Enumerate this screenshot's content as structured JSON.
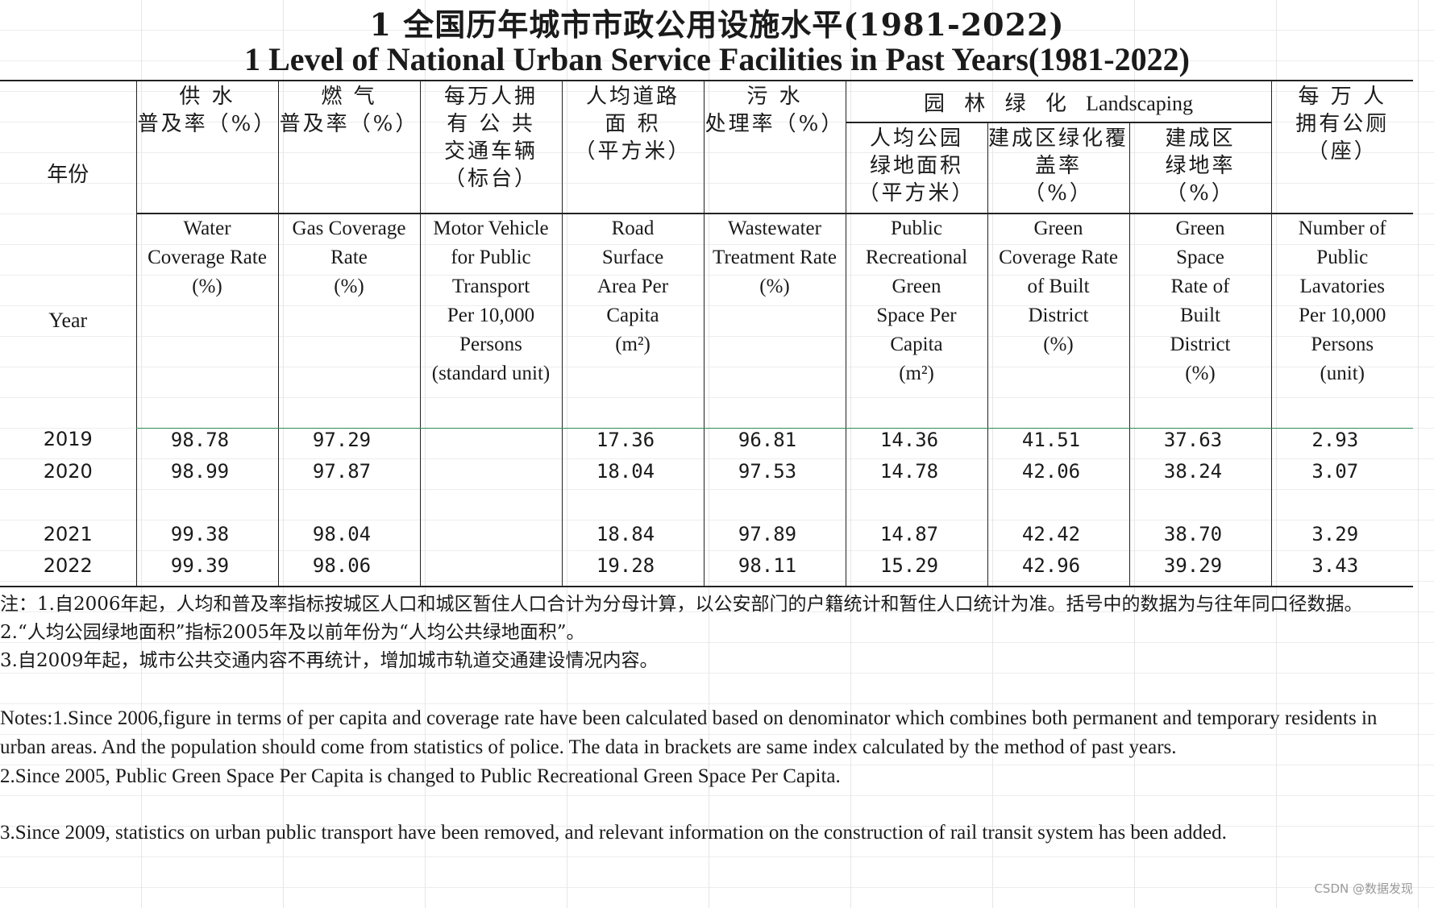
{
  "title_cn": "1  全国历年城市市政公用设施水平(1981-2022)",
  "title_en": "1   Level of National Urban Service Facilities in Past Years(1981-2022)",
  "year_header": {
    "cn": "年份",
    "en": "Year"
  },
  "landscaping_group": {
    "cn": "园 林 绿 化",
    "en": "Landscaping"
  },
  "columns": [
    {
      "cn": "供  水\n普及率（%）",
      "en": "Water\nCoverage Rate\n(%)"
    },
    {
      "cn": "燃  气\n普及率（%）",
      "en": "Gas Coverage\nRate\n(%)"
    },
    {
      "cn": "每万人拥\n有 公 共\n交通车辆\n（标台）",
      "en": "Motor Vehicle\nfor Public\nTransport\nPer 10,000\nPersons\n(standard unit)"
    },
    {
      "cn": "人均道路\n面  积\n（平方米）",
      "en": "Road\nSurface\nArea Per\nCapita\n(m²)"
    },
    {
      "cn": "污  水\n处理率（%）",
      "en": "Wastewater\nTreatment Rate\n(%)"
    },
    {
      "cn": "人均公园\n绿地面积\n（平方米）",
      "en": "Public\nRecreational\nGreen\nSpace      Per\nCapita\n(m²)"
    },
    {
      "cn": "建成区绿化覆\n盖率\n（%）",
      "en": "Green\nCoverage Rate\nof       Built\nDistrict\n(%)"
    },
    {
      "cn": "建成区\n绿地率\n（%）",
      "en": "Green\nSpace\nRate of\nBuilt\nDistrict\n(%)"
    },
    {
      "cn": "每 万 人\n拥有公厕\n（座）",
      "en": "Number of\nPublic\nLavatories\nPer 10,000\nPersons\n(unit)"
    }
  ],
  "rows": [
    {
      "year": "2019",
      "values": [
        "98.78",
        "97.29",
        "",
        "17.36",
        "96.81",
        "14.36",
        "41.51",
        "37.63",
        "2.93"
      ]
    },
    {
      "year": "2020",
      "values": [
        "98.99",
        "97.87",
        "",
        "18.04",
        "97.53",
        "14.78",
        "42.06",
        "38.24",
        "3.07"
      ]
    },
    {
      "year": "",
      "values": [
        "",
        "",
        "",
        "",
        "",
        "",
        "",
        "",
        ""
      ]
    },
    {
      "year": "2021",
      "values": [
        "99.38",
        "98.04",
        "",
        "18.84",
        "97.89",
        "14.87",
        "42.42",
        "38.70",
        "3.29"
      ]
    },
    {
      "year": "2022",
      "values": [
        "99.39",
        "98.06",
        "",
        "19.28",
        "98.11",
        "15.29",
        "42.96",
        "39.29",
        "3.43"
      ]
    }
  ],
  "notes_cn": [
    "注：1.自2006年起，人均和普及率指标按城区人口和城区暂住人口合计为分母计算，以公安部门的户籍统计和暂住人口统计为准。括号中的数据为与往年同口径数据。",
    "2.“人均公园绿地面积”指标2005年及以前年份为“人均公共绿地面积”。",
    "3.自2009年起，城市公共交通内容不再统计，增加城市轨道交通建设情况内容。"
  ],
  "notes_en": [
    "Notes:1.Since 2006,figure in terms of per capita and coverage rate have been calculated based on denominator which combines both permanent and temporary residents in urban areas. And the population should come from statistics of police. The data in brackets are same index calculated by the method of past years.",
    "2.Since 2005, Public Green Space Per Capita is changed to Public Recreational Green Space Per Capita.",
    "3.Since 2009, statistics on urban public transport have been removed, and relevant information on the construction of rail transit system has been added."
  ],
  "watermark": "CSDN @数据发现"
}
